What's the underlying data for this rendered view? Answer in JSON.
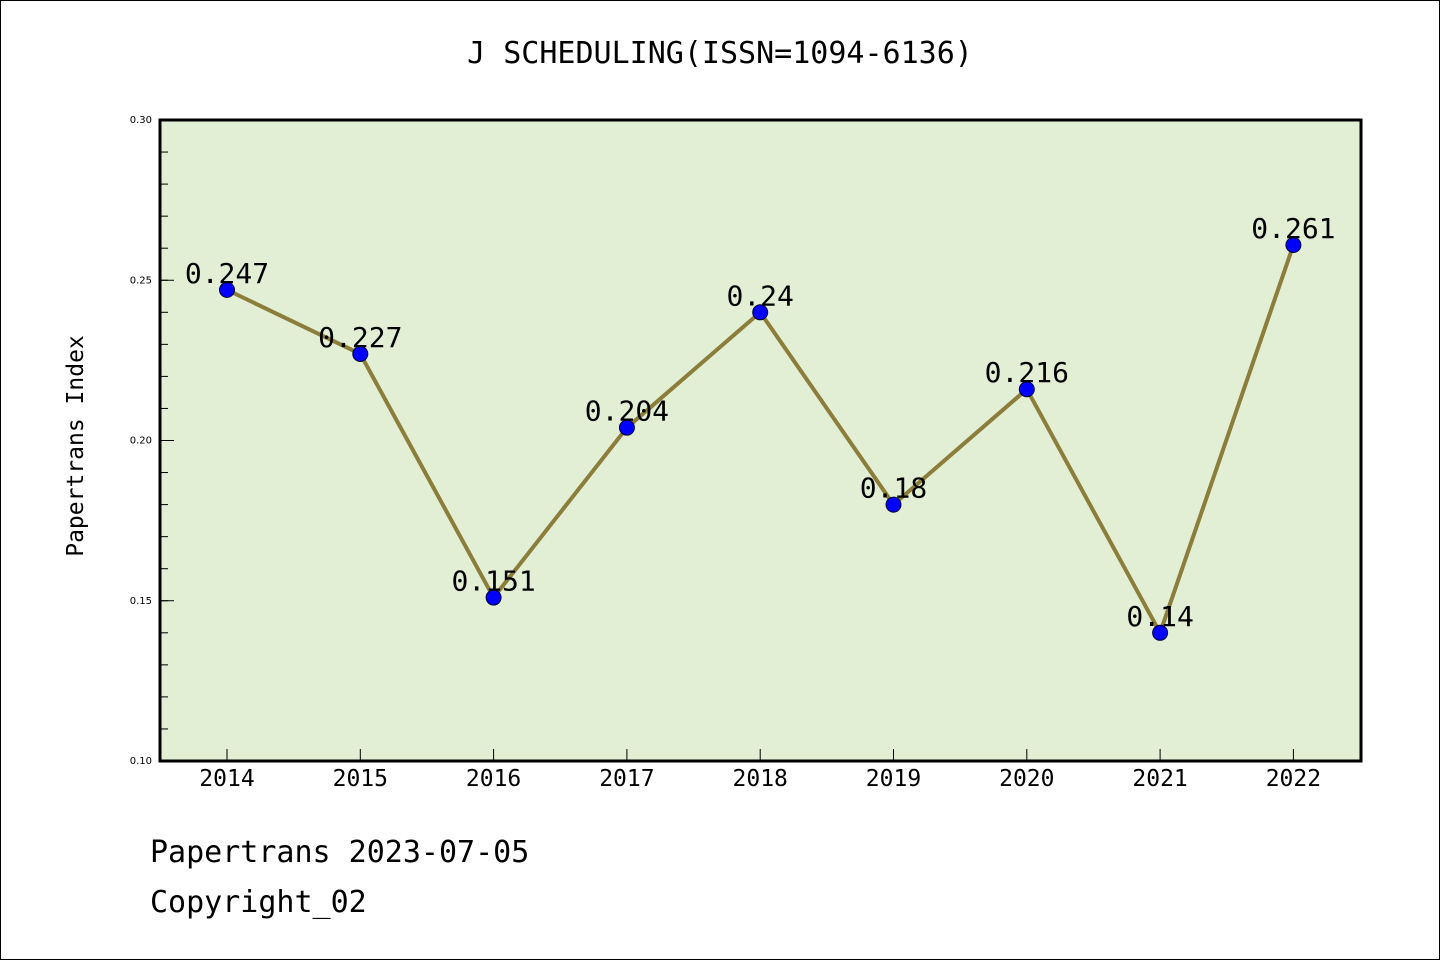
{
  "chart_data": {
    "type": "line",
    "title": "J SCHEDULING(ISSN=1094-6136)",
    "xlabel": "",
    "ylabel": "Papertrans Index",
    "categories": [
      "2014",
      "2015",
      "2016",
      "2017",
      "2018",
      "2019",
      "2020",
      "2021",
      "2022"
    ],
    "values": [
      0.247,
      0.227,
      0.151,
      0.204,
      0.24,
      0.18,
      0.216,
      0.14,
      0.261
    ],
    "data_labels": [
      "0.247",
      "0.227",
      "0.151",
      "0.204",
      "0.24",
      "0.18",
      "0.216",
      "0.14",
      "0.261"
    ],
    "ylim": [
      0.1,
      0.3
    ],
    "yticks": [
      "0.10",
      "0.15",
      "0.20",
      "0.25",
      "0.30"
    ],
    "yticks_values": [
      0.1,
      0.15,
      0.2,
      0.25,
      0.3
    ],
    "grid": false,
    "line_color": "#8b7d3a",
    "marker_color": "#0000ff",
    "plot_bg": "#e2efd5"
  },
  "footer": {
    "date": "Papertrans 2023-07-05",
    "copyright": "Copyright_02"
  }
}
